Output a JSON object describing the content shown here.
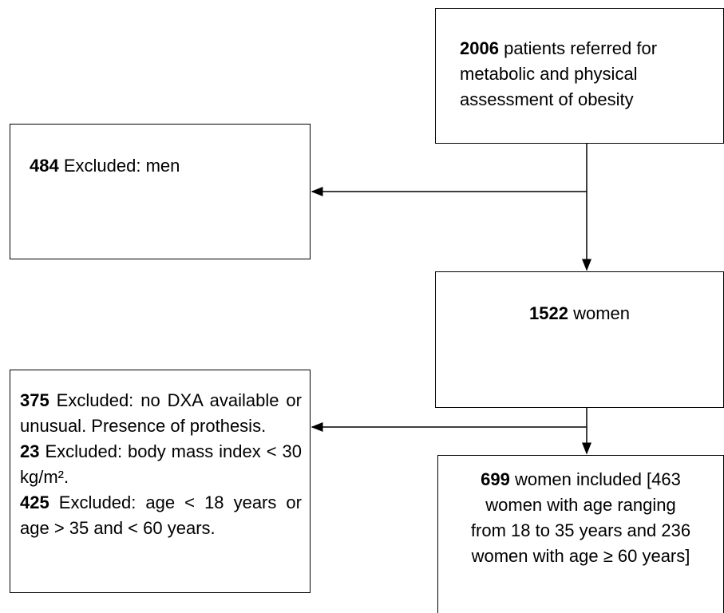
{
  "nodes": [
    {
      "count": 2006,
      "label": "patients referred for metabolic and physical assessment of obesity"
    },
    {
      "count": 484,
      "label": "Excluded: men"
    },
    {
      "count": 1522,
      "label": "women"
    },
    {
      "exclusions": [
        {
          "count": 375,
          "label": "Excluded: no DXA available or unusual. Presence of prothesis."
        },
        {
          "count": 23,
          "label": "Excluded: body mass index < 30 kg/m²."
        },
        {
          "count": 425,
          "label": "Excluded: age < 18 years or age > 35 and < 60 years."
        }
      ]
    },
    {
      "count": 699,
      "label": "women included [463 women with age ranging from 18 to 35 years and 236 women with age ≥ 60 years]"
    }
  ]
}
